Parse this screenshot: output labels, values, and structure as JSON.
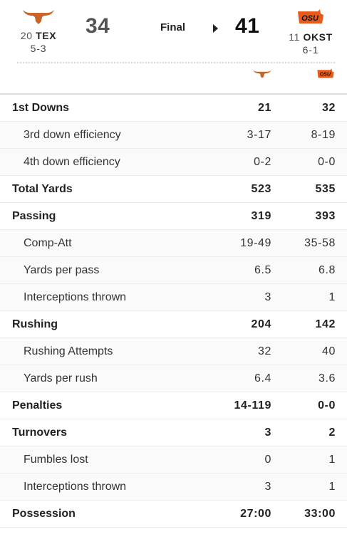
{
  "game": {
    "status": "Final",
    "away": {
      "rank": "20",
      "abbr": "TEX",
      "record": "5-3",
      "score": "34",
      "logo_icon": "longhorn-icon",
      "color": "#c8662a"
    },
    "home": {
      "rank": "11",
      "abbr": "OKST",
      "record": "6-1",
      "score": "41",
      "logo_icon": "osu-brand-icon",
      "color": "#e85a1c",
      "winner": true
    }
  },
  "stats": {
    "rows": [
      {
        "label": "1st Downs",
        "a": "21",
        "b": "32",
        "type": "main"
      },
      {
        "label": "3rd down efficiency",
        "a": "3-17",
        "b": "8-19",
        "type": "sub"
      },
      {
        "label": "4th down efficiency",
        "a": "0-2",
        "b": "0-0",
        "type": "sub"
      },
      {
        "label": "Total Yards",
        "a": "523",
        "b": "535",
        "type": "main"
      },
      {
        "label": "Passing",
        "a": "319",
        "b": "393",
        "type": "main"
      },
      {
        "label": "Comp-Att",
        "a": "19-49",
        "b": "35-58",
        "type": "sub"
      },
      {
        "label": "Yards per pass",
        "a": "6.5",
        "b": "6.8",
        "type": "sub"
      },
      {
        "label": "Interceptions thrown",
        "a": "3",
        "b": "1",
        "type": "sub"
      },
      {
        "label": "Rushing",
        "a": "204",
        "b": "142",
        "type": "main"
      },
      {
        "label": "Rushing Attempts",
        "a": "32",
        "b": "40",
        "type": "sub"
      },
      {
        "label": "Yards per rush",
        "a": "6.4",
        "b": "3.6",
        "type": "sub"
      },
      {
        "label": "Penalties",
        "a": "14-119",
        "b": "0-0",
        "type": "main"
      },
      {
        "label": "Turnovers",
        "a": "3",
        "b": "2",
        "type": "main"
      },
      {
        "label": "Fumbles lost",
        "a": "0",
        "b": "1",
        "type": "sub"
      },
      {
        "label": "Interceptions thrown",
        "a": "3",
        "b": "1",
        "type": "sub"
      },
      {
        "label": "Possession",
        "a": "27:00",
        "b": "33:00",
        "type": "main"
      }
    ]
  }
}
